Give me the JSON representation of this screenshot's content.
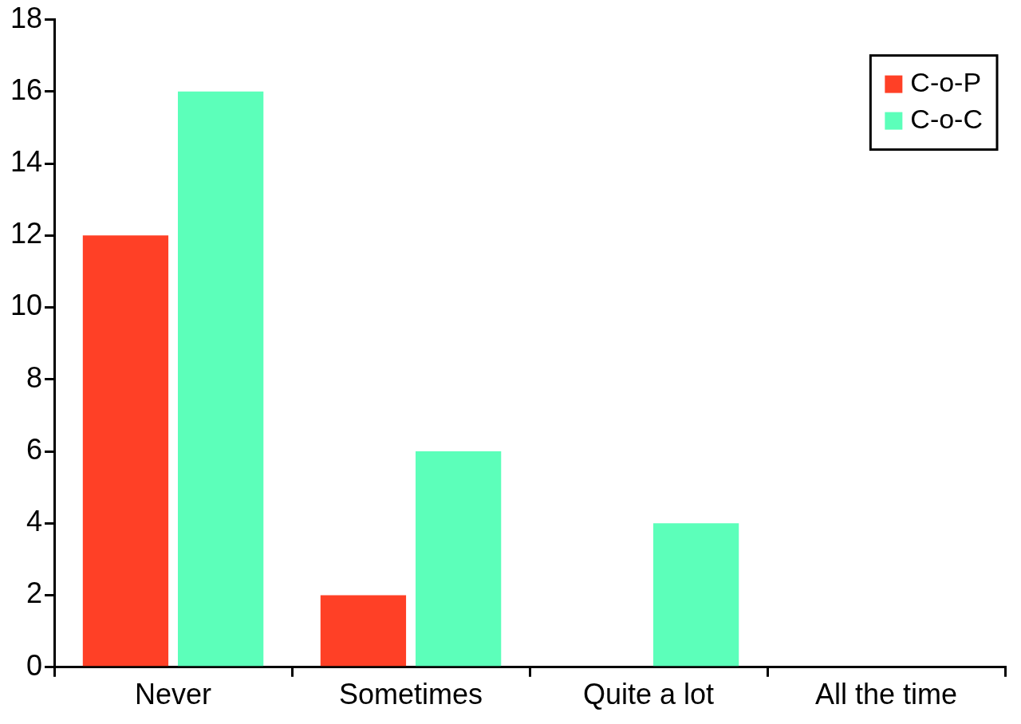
{
  "chart_data": {
    "type": "bar",
    "categories": [
      "Never",
      "Sometimes",
      "Quite a lot",
      "All the time"
    ],
    "series": [
      {
        "name": "C-o-P",
        "color": "#ff4026",
        "values": [
          12,
          2,
          0,
          0
        ]
      },
      {
        "name": "C-o-C",
        "color": "#5cffba",
        "values": [
          16,
          6,
          4,
          0
        ]
      }
    ],
    "ylim": [
      0,
      18
    ],
    "yticks": [
      0,
      2,
      4,
      6,
      8,
      10,
      12,
      14,
      16,
      18
    ],
    "grid": false,
    "legend": "upper right"
  }
}
